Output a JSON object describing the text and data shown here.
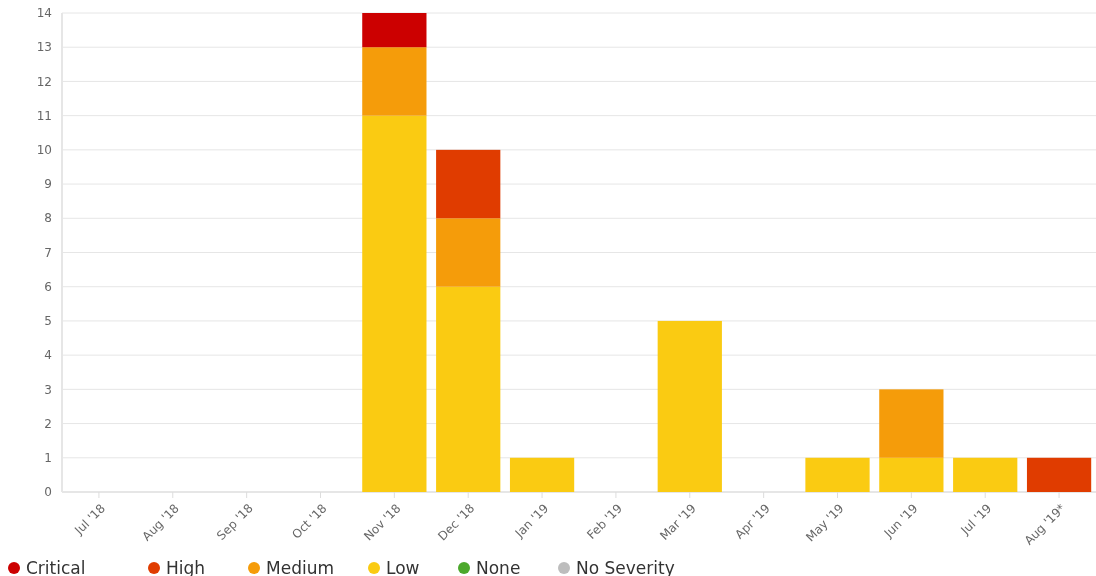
{
  "chart_data": {
    "type": "bar",
    "stacked": true,
    "categories": [
      "Jul '18",
      "Aug '18",
      "Sep '18",
      "Oct '18",
      "Nov '18",
      "Dec '18",
      "Jan '19",
      "Feb '19",
      "Mar '19",
      "Apr '19",
      "May '19",
      "Jun '19",
      "Jul '19",
      "Aug '19*"
    ],
    "series": [
      {
        "name": "No Severity",
        "color": "#bdbdbd",
        "values": [
          0,
          0,
          0,
          0,
          0,
          0,
          0,
          0,
          0,
          0,
          0,
          0,
          0,
          0
        ]
      },
      {
        "name": "None",
        "color": "#4ca82c",
        "values": [
          0,
          0,
          0,
          0,
          0,
          0,
          0,
          0,
          0,
          0,
          0,
          0,
          0,
          0
        ]
      },
      {
        "name": "Low",
        "color": "#facb12",
        "values": [
          0,
          0,
          0,
          0,
          11,
          6,
          1,
          0,
          5,
          0,
          1,
          1,
          1,
          0
        ]
      },
      {
        "name": "Medium",
        "color": "#f59c0a",
        "values": [
          0,
          0,
          0,
          0,
          2,
          2,
          0,
          0,
          0,
          0,
          0,
          2,
          0,
          0
        ]
      },
      {
        "name": "High",
        "color": "#e03c00",
        "values": [
          0,
          0,
          0,
          0,
          0,
          2,
          0,
          0,
          0,
          0,
          0,
          0,
          0,
          1
        ]
      },
      {
        "name": "Critical",
        "color": "#cc0000",
        "values": [
          0,
          0,
          0,
          0,
          1,
          0,
          0,
          0,
          0,
          0,
          0,
          0,
          0,
          0
        ]
      }
    ],
    "ylim": [
      0,
      14
    ],
    "yticks": [
      0,
      1,
      2,
      3,
      4,
      5,
      6,
      7,
      8,
      9,
      10,
      11,
      12,
      13,
      14
    ],
    "grid": "y",
    "legend": "bottom"
  }
}
